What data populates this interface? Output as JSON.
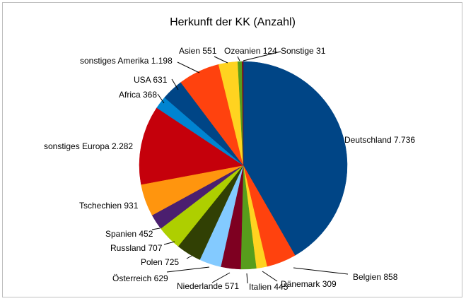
{
  "chart_data": {
    "type": "pie",
    "title": "Herkunft der KK (Anzahl)",
    "slices": [
      {
        "name": "Deutschland",
        "value": 7736,
        "label": "Deutschland 7.736",
        "color": "#004586"
      },
      {
        "name": "Belgien",
        "value": 858,
        "label": "Belgien 858",
        "color": "#ff420e"
      },
      {
        "name": "Dänemark",
        "value": 309,
        "label": "Dänemark 309",
        "color": "#ffd320"
      },
      {
        "name": "Italien",
        "value": 445,
        "label": "Italien 445",
        "color": "#579d1c"
      },
      {
        "name": "Niederlande",
        "value": 571,
        "label": "Niederlande 571",
        "color": "#7e0021"
      },
      {
        "name": "Österreich",
        "value": 629,
        "label": "Österreich 629",
        "color": "#83caff"
      },
      {
        "name": "Polen",
        "value": 725,
        "label": "Polen 725",
        "color": "#314004"
      },
      {
        "name": "Russland",
        "value": 707,
        "label": "Russland 707",
        "color": "#aecf00"
      },
      {
        "name": "Spanien",
        "value": 452,
        "label": "Spanien 452",
        "color": "#4b1f6f"
      },
      {
        "name": "Tschechien",
        "value": 931,
        "label": "Tschechien 931",
        "color": "#ff950e"
      },
      {
        "name": "sonstiges Europa",
        "value": 2282,
        "label": "sonstiges Europa 2.282",
        "color": "#c5000b"
      },
      {
        "name": "Africa",
        "value": 368,
        "label": "Africa 368",
        "color": "#0084d1"
      },
      {
        "name": "USA",
        "value": 631,
        "label": "USA 631",
        "color": "#004586"
      },
      {
        "name": "sonstiges Amerika",
        "value": 1198,
        "label": "sonstiges Amerika 1.198",
        "color": "#ff420e"
      },
      {
        "name": "Asien",
        "value": 551,
        "label": "Asien 551",
        "color": "#ffd320"
      },
      {
        "name": "Ozeanien",
        "value": 124,
        "label": "Ozeanien 124",
        "color": "#579d1c"
      },
      {
        "name": "Sonstige",
        "value": 31,
        "label": "Sonstige 31",
        "color": "#7e0021"
      }
    ]
  }
}
